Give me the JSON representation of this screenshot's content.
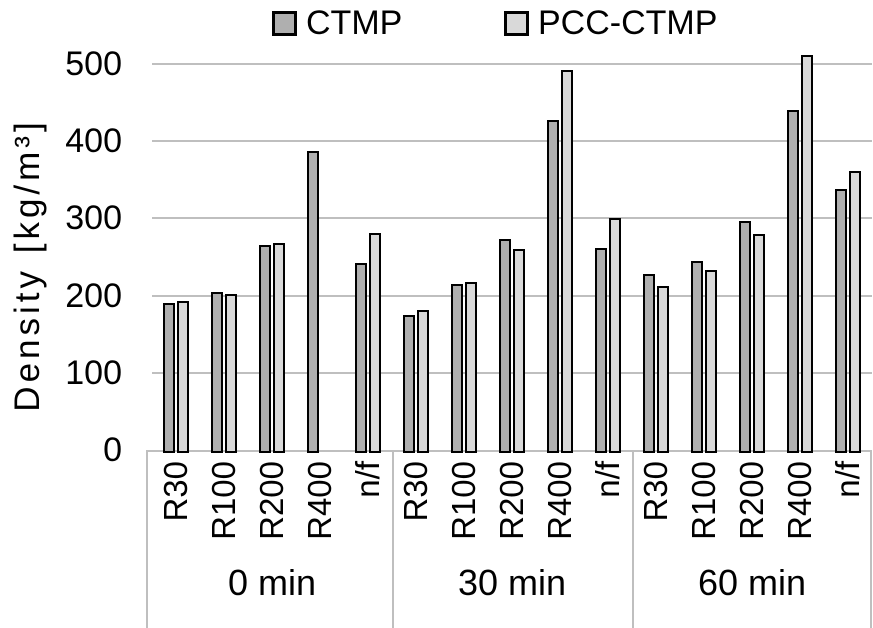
{
  "chart_data": {
    "type": "bar",
    "title": "",
    "ylabel": "Density [kg/m³]",
    "ylim": [
      0,
      500
    ],
    "yticks": [
      0,
      100,
      200,
      300,
      400,
      500
    ],
    "grid": "horizontal",
    "legend_position": "top",
    "group_labels": [
      "0 min",
      "30 min",
      "60 min"
    ],
    "categories": [
      "R30",
      "R100",
      "R200",
      "R400",
      "n/f"
    ],
    "series": [
      {
        "name": "CTMP",
        "color": "#afafaf",
        "values": [
          [
            190,
            205,
            266,
            387,
            242
          ],
          [
            175,
            215,
            273,
            427,
            262
          ],
          [
            228,
            245,
            297,
            440,
            338
          ]
        ]
      },
      {
        "name": "PCC-CTMP",
        "color": "#d9d9d9",
        "values": [
          [
            193,
            202,
            268,
            null,
            281
          ],
          [
            181,
            218,
            260,
            492,
            300
          ],
          [
            212,
            233,
            280,
            512,
            362
          ]
        ]
      }
    ]
  },
  "colors": {
    "gridline": "#bfbfbf",
    "bar_border": "#000000",
    "text": "#000000"
  }
}
